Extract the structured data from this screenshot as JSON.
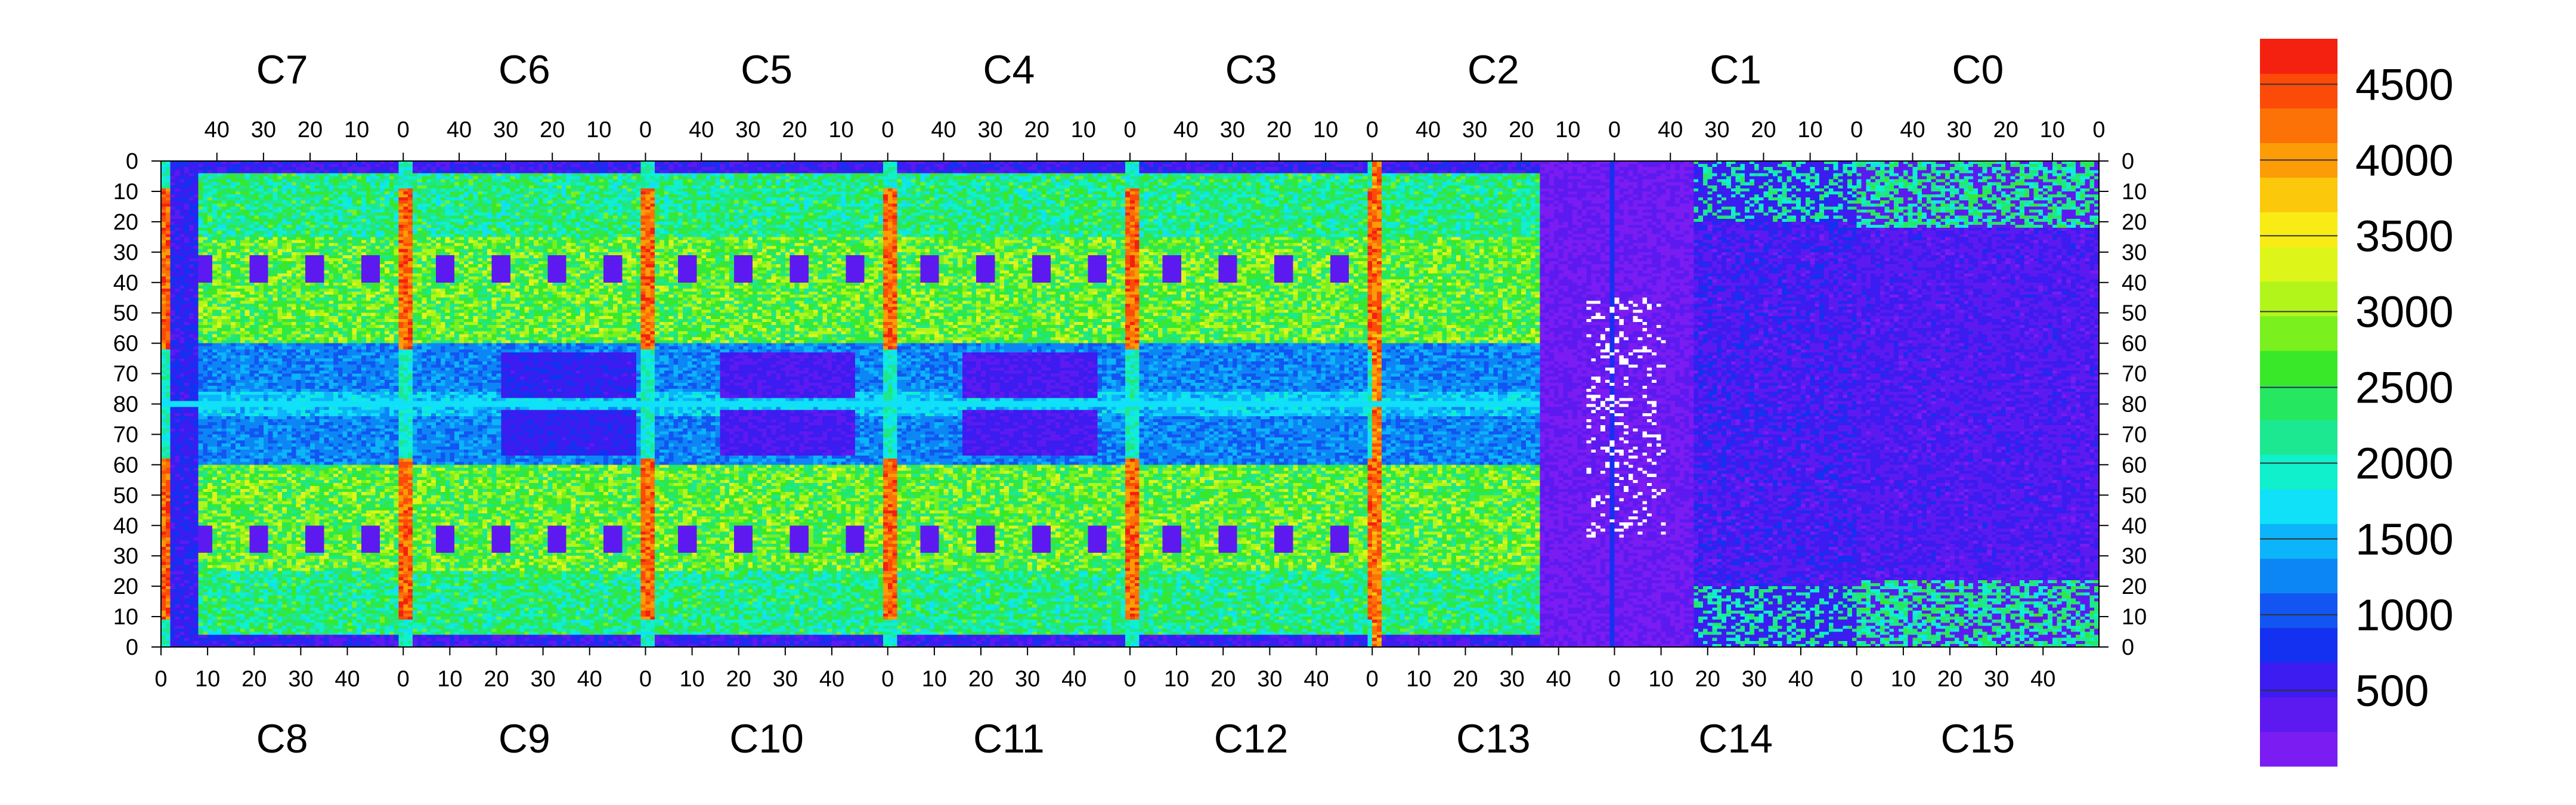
{
  "chart_data": {
    "type": "heatmap",
    "top_chips": [
      "C7",
      "C6",
      "C5",
      "C4",
      "C3",
      "C2",
      "C1",
      "C0"
    ],
    "bottom_chips": [
      "C8",
      "C9",
      "C10",
      "C11",
      "C12",
      "C13",
      "C14",
      "C15"
    ],
    "top_axis_ticks": [
      "40",
      "30",
      "20",
      "10",
      "0"
    ],
    "bottom_axis_ticks": [
      "0",
      "10",
      "20",
      "30",
      "40"
    ],
    "y_tick_labels": [
      "0",
      "10",
      "20",
      "30",
      "40",
      "50",
      "60",
      "70",
      "80",
      "70",
      "60",
      "50",
      "40",
      "30",
      "20",
      "10",
      "0"
    ],
    "columns_per_chip": 52,
    "rows_per_half": 80,
    "colorbar": {
      "min": 0,
      "max": 4800,
      "tick_labels": [
        "500",
        "1000",
        "1500",
        "2000",
        "2500",
        "3000",
        "3500",
        "4000",
        "4500"
      ],
      "tick_values": [
        500,
        1000,
        1500,
        2000,
        2500,
        3000,
        3500,
        4000,
        4500
      ],
      "colors": [
        "#7a1cf2",
        "#5d1af0",
        "#3c1cf0",
        "#1430f0",
        "#1255f2",
        "#0d86f5",
        "#0cb4fa",
        "#10e0f8",
        "#10f0cc",
        "#1de892",
        "#25e860",
        "#3ae82a",
        "#7af01e",
        "#b2f51a",
        "#def51a",
        "#f8ec14",
        "#fcc80c",
        "#fc9c06",
        "#fc7206",
        "#fc4a08",
        "#f42010"
      ]
    },
    "regions": {
      "dead_chip": "C13/C2",
      "hot_columns": "chip boundary columns",
      "background_level": "1800-2600",
      "low_level_wire_zone": "C1/C14 and C0/C15"
    }
  }
}
